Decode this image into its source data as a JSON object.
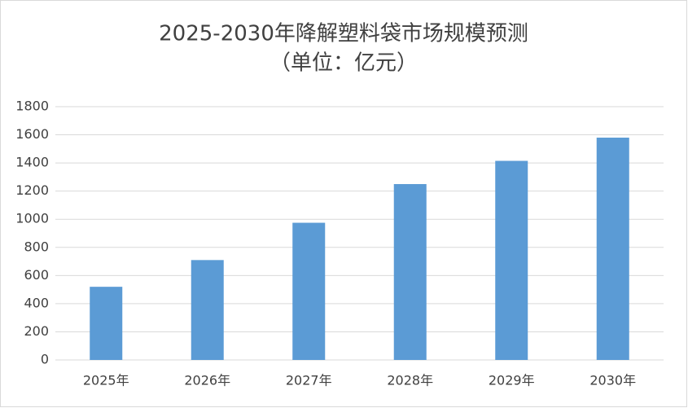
{
  "chart_data": {
    "type": "bar",
    "title": "2025-2030年降解塑料袋市场规模预测",
    "subtitle": "（单位：亿元）",
    "categories": [
      "2025年",
      "2026年",
      "2027年",
      "2028年",
      "2029年",
      "2030年"
    ],
    "values": [
      520,
      710,
      975,
      1250,
      1415,
      1580
    ],
    "color": "#5b9bd5",
    "ylim": [
      0,
      1800
    ],
    "yticks": [
      0,
      200,
      400,
      600,
      800,
      1000,
      1200,
      1400,
      1600,
      1800
    ],
    "grid": true
  }
}
